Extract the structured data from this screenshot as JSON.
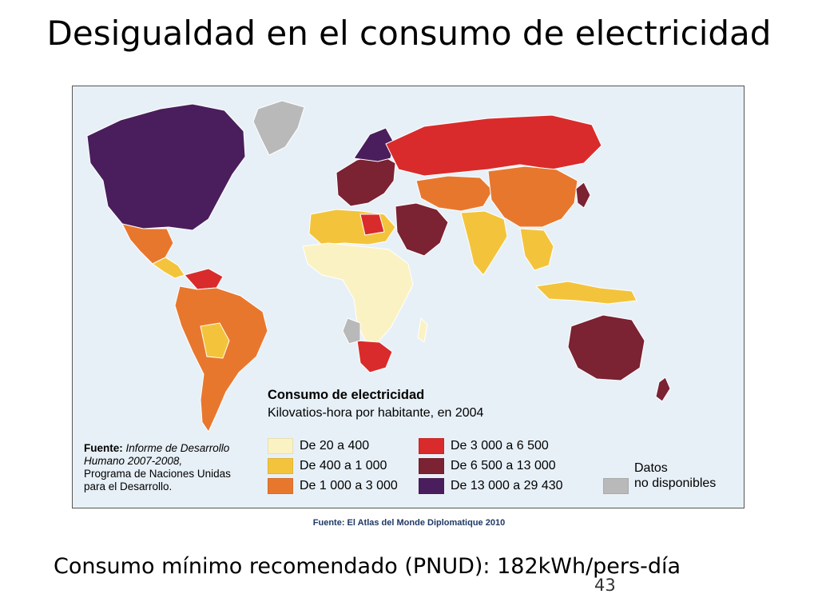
{
  "slide": {
    "title": "Desigualdad en el consumo de electricidad",
    "atlas_source": "Fuente: El Atlas del Monde Diplomatique 2010",
    "bottom_text": "Consumo mínimo recomendado (PNUD): 182kWh/pers-día",
    "page_number": "43"
  },
  "map": {
    "legend_title": "Consumo de electricidad",
    "legend_subtitle": "Kilovatios-hora por habitante, en 2004",
    "legend": [
      {
        "label": "De 20 a 400",
        "color": "#fbf2c4"
      },
      {
        "label": "De 400 a 1 000",
        "color": "#f3c43b"
      },
      {
        "label": "De 1 000 a 3 000",
        "color": "#e8772e"
      },
      {
        "label": "De 3 000 a 6 500",
        "color": "#d92b2b"
      },
      {
        "label": "De 6 500 a 13 000",
        "color": "#7b2233"
      },
      {
        "label": "De 13 000 a 29 430",
        "color": "#4a1e5c"
      }
    ],
    "no_data": {
      "line1": "Datos",
      "line2": "no disponibles",
      "color": "#b9b9b9"
    },
    "source_note": {
      "prefix": "Fuente: ",
      "report_italic_1": "Informe de Desarrollo",
      "report_italic_2": "Humano 2007-2008,",
      "line3": "Programa de Naciones Unidas",
      "line4": "para el Desarrollo."
    },
    "ocean_color": "#e7f0f7"
  }
}
